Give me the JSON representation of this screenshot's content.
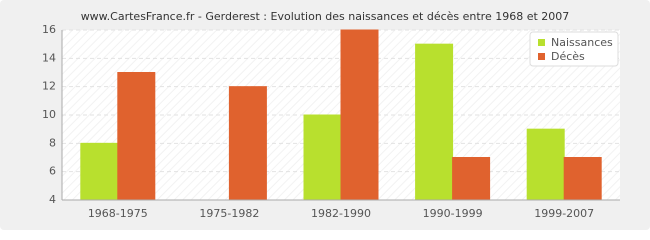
{
  "chart_data": {
    "type": "bar",
    "title": "www.CartesFrance.fr - Gerderest : Evolution des naissances et décès entre 1968 et 2007",
    "categories": [
      "1968-1975",
      "1975-1982",
      "1982-1990",
      "1990-1999",
      "1999-2007"
    ],
    "series": [
      {
        "name": "Naissances",
        "color": "#b8e02e",
        "values": [
          8,
          4,
          10,
          15,
          9
        ]
      },
      {
        "name": "Décès",
        "color": "#e0622e",
        "values": [
          13,
          12,
          16,
          7,
          7
        ]
      }
    ],
    "ylim": [
      4,
      16
    ],
    "yticks": [
      4,
      6,
      8,
      10,
      12,
      14,
      16
    ],
    "grid": true,
    "legend": "top-right"
  }
}
